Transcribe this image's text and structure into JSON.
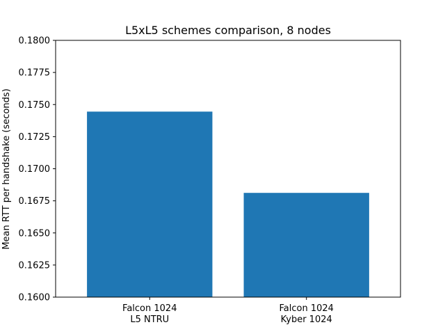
{
  "chart_data": {
    "type": "bar",
    "title": "L5xL5 schemes comparison, 8 nodes",
    "xlabel": "",
    "ylabel": "Mean RTT per handshake (seconds)",
    "categories": [
      [
        "Falcon 1024",
        "L5 NTRU"
      ],
      [
        "Falcon 1024",
        "Kyber 1024"
      ]
    ],
    "values": [
      0.17445,
      0.16812
    ],
    "ylim": [
      0.16,
      0.18
    ],
    "yticks": [
      "0.1600",
      "0.1625",
      "0.1650",
      "0.1675",
      "0.1700",
      "0.1725",
      "0.1750",
      "0.1775",
      "0.1800"
    ],
    "grid": false,
    "legend": "none",
    "bar_color": "#1f77b4"
  }
}
